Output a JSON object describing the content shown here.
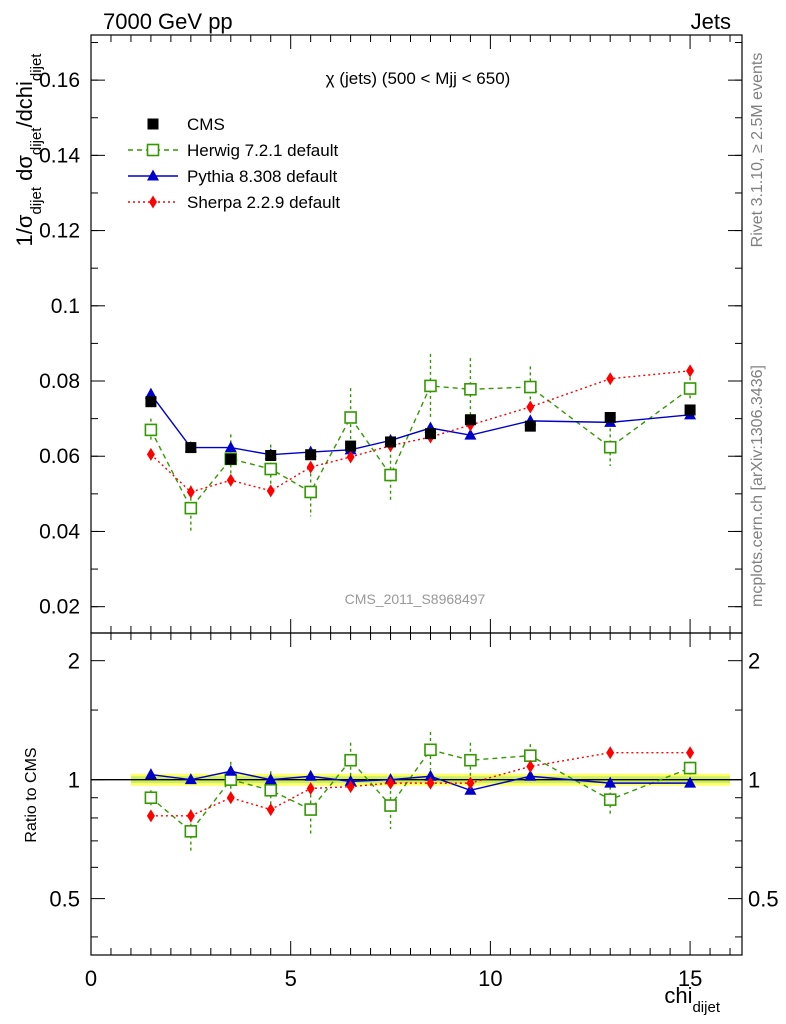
{
  "header": {
    "left": "7000 GeV pp",
    "right": "Jets"
  },
  "side_labels": {
    "top": "Rivet 3.1.10, ≥ 2.5M events",
    "bottom": "mcplots.cern.ch [arXiv:1306.3436]"
  },
  "watermark": "CMS_2011_S8968497",
  "chart_data": [
    {
      "type": "scatter",
      "title": "χ (jets) (500 < Mjj <  650)",
      "ylabel": "1/σdijet dσdijet/dchidijet",
      "ylabel_parts": {
        "a": "1/σ",
        "a_sub": "dijet",
        "b": " dσ",
        "b_sub": "dijet",
        "c": "/dchi",
        "c_sub": "dijet"
      },
      "xlabel": "chi",
      "xlabel_sub": "dijet",
      "xlim": [
        0,
        16.3
      ],
      "ylim": [
        0.013,
        0.172
      ],
      "yticks": [
        0.02,
        0.04,
        0.06,
        0.08,
        0.1,
        0.12,
        0.14,
        0.16
      ],
      "ytick_labels": [
        "0.02",
        "0.04",
        "0.06",
        "0.08",
        "0.1",
        "0.12",
        "0.14",
        "0.16"
      ],
      "legend_position": "top-left",
      "series": [
        {
          "name": "CMS",
          "color": "#000000",
          "marker": "square-filled",
          "line": "none",
          "x": [
            1.5,
            2.5,
            3.5,
            4.5,
            5.5,
            6.5,
            7.5,
            8.5,
            9.5,
            11,
            13,
            15
          ],
          "y": [
            0.0745,
            0.0623,
            0.0592,
            0.0602,
            0.0604,
            0.0627,
            0.0638,
            0.066,
            0.0697,
            0.068,
            0.0703,
            0.0723
          ],
          "err": [
            0.0013,
            0.001,
            0.001,
            0.001,
            0.001,
            0.001,
            0.001,
            0.001,
            0.0012,
            0.001,
            0.001,
            0.0012
          ]
        },
        {
          "name": "Herwig 7.2.1 default",
          "color": "#339900",
          "marker": "square-open",
          "line": "dashed",
          "x": [
            1.5,
            2.5,
            3.5,
            4.5,
            5.5,
            6.5,
            7.5,
            8.5,
            9.5,
            11,
            13,
            15
          ],
          "y": [
            0.067,
            0.0462,
            0.0593,
            0.0566,
            0.0505,
            0.0703,
            0.055,
            0.0787,
            0.0778,
            0.0784,
            0.0624,
            0.078
          ],
          "err": [
            0.003,
            0.006,
            0.0065,
            0.0065,
            0.0065,
            0.0078,
            0.007,
            0.0085,
            0.0083,
            0.0055,
            0.005,
            0.003
          ]
        },
        {
          "name": "Pythia 8.308 default",
          "color": "#0000cc",
          "marker": "triangle",
          "line": "solid",
          "x": [
            1.5,
            2.5,
            3.5,
            4.5,
            5.5,
            6.5,
            7.5,
            8.5,
            9.5,
            11,
            13,
            15
          ],
          "y": [
            0.0765,
            0.0623,
            0.0623,
            0.0604,
            0.0611,
            0.0617,
            0.0642,
            0.0675,
            0.0656,
            0.0694,
            0.069,
            0.071
          ],
          "err": [
            0.001,
            0.0007,
            0.0007,
            0.0006,
            0.0006,
            0.0006,
            0.0006,
            0.0007,
            0.0006,
            0.0007,
            0.0006,
            0.0007
          ]
        },
        {
          "name": "Sherpa 2.2.9 default",
          "color": "#ff0000",
          "marker": "diamond",
          "line": "dotted",
          "x": [
            1.5,
            2.5,
            3.5,
            4.5,
            5.5,
            6.5,
            7.5,
            8.5,
            9.5,
            11,
            13,
            15
          ],
          "y": [
            0.0605,
            0.0505,
            0.0536,
            0.0508,
            0.0571,
            0.0598,
            0.0628,
            0.0651,
            0.0683,
            0.0731,
            0.0806,
            0.0827
          ],
          "err": [
            0.0012,
            0.0012,
            0.0012,
            0.0012,
            0.0012,
            0.0012,
            0.0012,
            0.0012,
            0.0012,
            0.0012,
            0.0012,
            0.0012
          ]
        }
      ]
    },
    {
      "type": "scatter",
      "title": "",
      "ylabel": "Ratio to CMS",
      "xlabel": "chi",
      "xlabel_sub": "dijet",
      "xlim": [
        0,
        16.3
      ],
      "ylim": [
        0.36,
        2.35
      ],
      "ylog": true,
      "xticks": [
        0,
        5,
        10,
        15
      ],
      "xtick_labels": [
        "0",
        "5",
        "10",
        "15"
      ],
      "yticks": [
        0.5,
        1,
        2
      ],
      "ytick_labels": [
        "0.5",
        "1",
        "2"
      ],
      "band": {
        "x": [
          1.0,
          16.0
        ],
        "lo": 0.965,
        "hi": 1.035,
        "color": "#ffff66",
        "inner_lo": 0.98,
        "inner_hi": 1.02,
        "inner_color": "#ccee66"
      },
      "series": [
        {
          "name": "Herwig 7.2.1 default",
          "color": "#339900",
          "marker": "square-open",
          "line": "dashed",
          "x": [
            1.5,
            2.5,
            3.5,
            4.5,
            5.5,
            6.5,
            7.5,
            8.5,
            9.5,
            11,
            13,
            15
          ],
          "y": [
            0.9,
            0.74,
            1.0,
            0.94,
            0.84,
            1.12,
            0.86,
            1.19,
            1.12,
            1.15,
            0.89,
            1.07
          ],
          "err": [
            0.04,
            0.09,
            0.11,
            0.11,
            0.11,
            0.12,
            0.11,
            0.13,
            0.12,
            0.08,
            0.07,
            0.04
          ]
        },
        {
          "name": "Pythia 8.308 default",
          "color": "#0000cc",
          "marker": "triangle",
          "line": "solid",
          "x": [
            1.5,
            2.5,
            3.5,
            4.5,
            5.5,
            6.5,
            7.5,
            8.5,
            9.5,
            11,
            13,
            15
          ],
          "y": [
            1.03,
            1.0,
            1.05,
            1.0,
            1.02,
            0.99,
            1.0,
            1.02,
            0.94,
            1.02,
            0.98,
            0.98
          ],
          "err": [
            0.01,
            0.01,
            0.01,
            0.01,
            0.01,
            0.01,
            0.01,
            0.01,
            0.01,
            0.01,
            0.01,
            0.01
          ]
        },
        {
          "name": "Sherpa 2.2.9 default",
          "color": "#ff0000",
          "marker": "diamond",
          "line": "dotted",
          "x": [
            1.5,
            2.5,
            3.5,
            4.5,
            5.5,
            6.5,
            7.5,
            8.5,
            9.5,
            11,
            13,
            15
          ],
          "y": [
            0.81,
            0.81,
            0.9,
            0.84,
            0.95,
            0.96,
            0.98,
            0.98,
            0.98,
            1.08,
            1.17,
            1.17
          ],
          "err": [
            0.02,
            0.03,
            0.02,
            0.02,
            0.02,
            0.02,
            0.02,
            0.02,
            0.02,
            0.02,
            0.02,
            0.02
          ]
        }
      ]
    }
  ]
}
